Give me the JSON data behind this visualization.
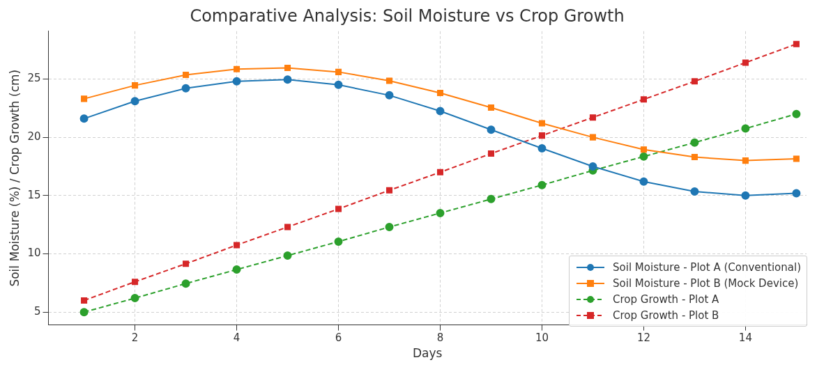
{
  "chart_data": {
    "type": "line",
    "title": "Comparative Analysis: Soil Moisture vs Crop Growth",
    "xlabel": "Days",
    "ylabel": "Soil Moisture (%) / Crop Growth (cm)",
    "x": [
      1,
      2,
      3,
      4,
      5,
      6,
      7,
      8,
      9,
      10,
      11,
      12,
      13,
      14,
      15
    ],
    "series": [
      {
        "name": "Soil Moisture - Plot A (Conventional)",
        "color": "#1f77b4",
        "marker": "circle",
        "line_style": "solid",
        "values": [
          21.6,
          23.1,
          24.2,
          24.8,
          24.95,
          24.5,
          23.6,
          22.25,
          20.65,
          19.05,
          17.5,
          16.2,
          15.35,
          15.0,
          15.2
        ]
      },
      {
        "name": "Soil Moisture - Plot B (Mock Device)",
        "color": "#ff7f0e",
        "marker": "square",
        "line_style": "solid",
        "values": [
          23.3,
          24.45,
          25.35,
          25.85,
          25.95,
          25.6,
          24.85,
          23.8,
          22.55,
          21.2,
          20.0,
          18.95,
          18.3,
          18.0,
          18.15
        ]
      },
      {
        "name": "Crop Growth - Plot A",
        "color": "#2ca02c",
        "marker": "circle",
        "line_style": "dashed",
        "values": [
          5.0,
          6.2,
          7.45,
          8.65,
          9.85,
          11.05,
          12.3,
          13.5,
          14.7,
          15.9,
          17.15,
          18.35,
          19.55,
          20.75,
          22.0
        ]
      },
      {
        "name": "Crop Growth - Plot B",
        "color": "#d62728",
        "marker": "square",
        "line_style": "dashed",
        "values": [
          6.0,
          7.6,
          9.15,
          10.75,
          12.3,
          13.85,
          15.45,
          17.0,
          18.6,
          20.15,
          21.7,
          23.25,
          24.8,
          26.4,
          28.0
        ]
      }
    ],
    "xlim": [
      0.3,
      15.2
    ],
    "xticks": [
      2,
      4,
      6,
      8,
      10,
      12,
      14
    ],
    "ylim": [
      3.9,
      29.1
    ],
    "yticks": [
      5,
      10,
      15,
      20,
      25
    ],
    "grid": true,
    "legend": "bottom right"
  }
}
